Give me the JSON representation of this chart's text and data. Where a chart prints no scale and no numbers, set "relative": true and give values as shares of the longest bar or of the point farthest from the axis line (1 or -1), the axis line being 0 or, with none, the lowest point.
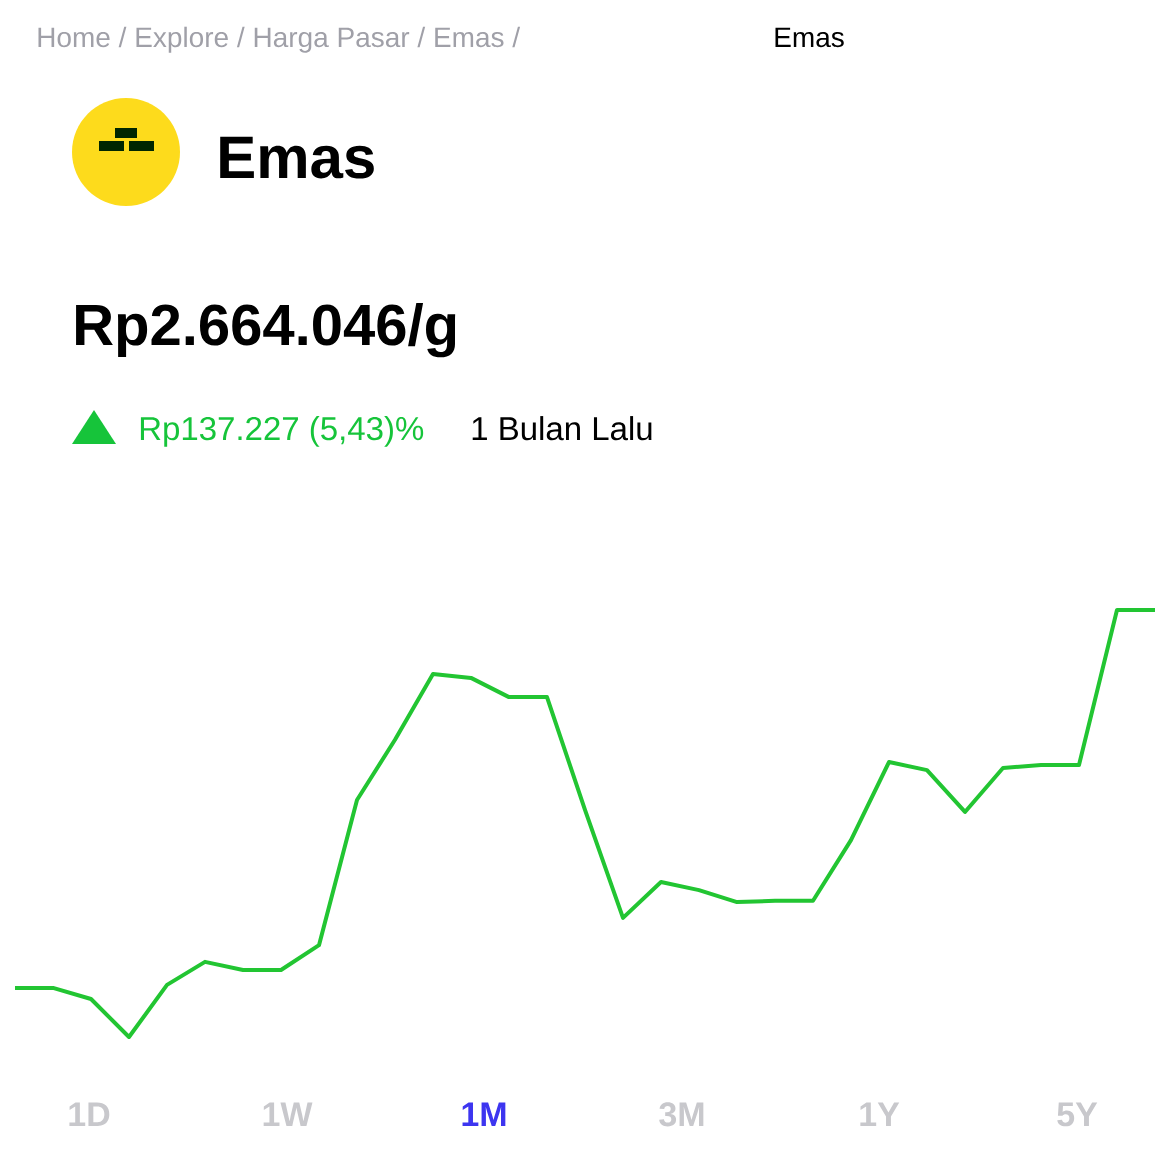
{
  "chart_data": {
    "type": "line",
    "relative": true,
    "title": "Emas",
    "subtitle": "Rp2.664.046/g",
    "annotations": [
      "Home / Explore / Harga Pasar / Emas /",
      "Emas",
      "Rp137.227 (5,43)%",
      "1 Bulan Lalu",
      "1D",
      "1W",
      "1M",
      "3M",
      "1Y",
      "5Y"
    ],
    "categories": [
      null,
      null,
      null,
      null,
      null,
      null,
      null,
      null,
      null,
      null,
      null,
      null,
      null,
      null,
      null,
      null,
      null,
      null,
      null,
      null,
      null,
      null,
      null,
      null,
      null,
      null,
      null,
      null,
      null,
      null,
      null
    ],
    "series": [
      {
        "color": "#22c532",
        "values": [
          0.115,
          0.115,
          0.089,
          0,
          0.122,
          0.176,
          0.157,
          0.157,
          0.215,
          0.555,
          0.696,
          0.85,
          0.841,
          0.796,
          0.796,
          0.532,
          0.279,
          0.363,
          0.344,
          0.316,
          0.319,
          0.319,
          0.461,
          0.644,
          0.625,
          0.527,
          0.63,
          0.637,
          0.637,
          1,
          1
        ]
      }
    ],
    "marker": "none",
    "line_style": "solid"
  }
}
